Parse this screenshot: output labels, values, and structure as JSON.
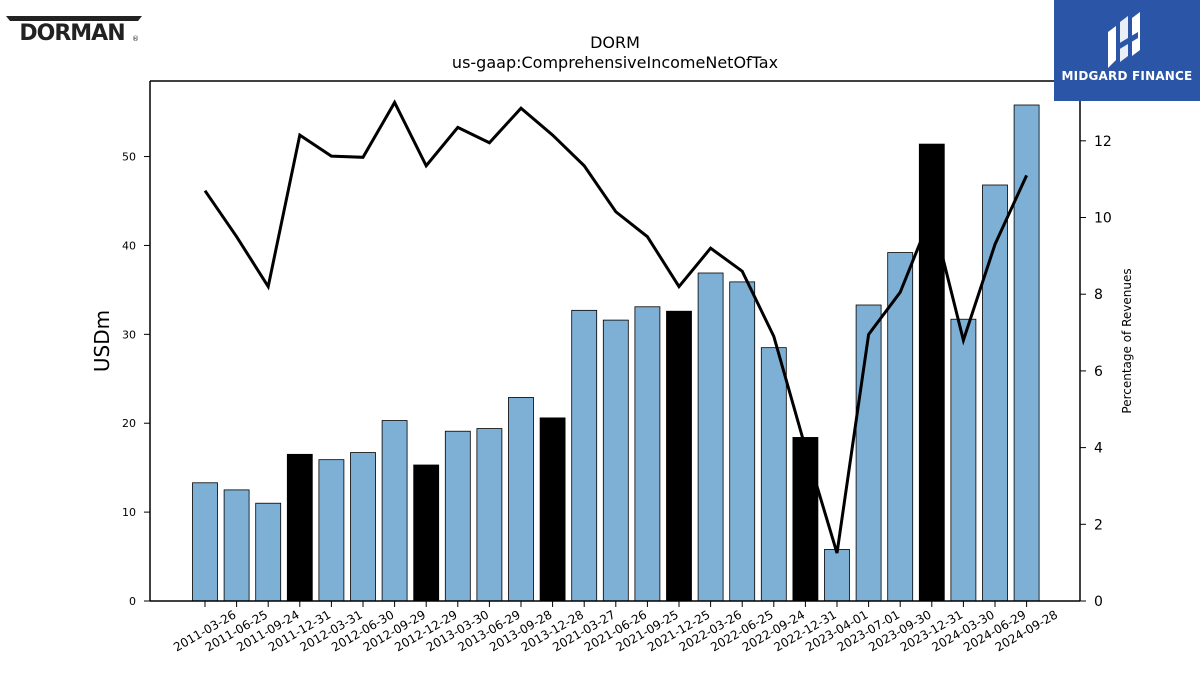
{
  "logos": {
    "left_text": "DORMAN",
    "right_text": "MIDGARD FINANCE"
  },
  "chart_data": {
    "type": "bar",
    "title": "DORM",
    "subtitle": "us-gaap:ComprehensiveIncomeNetOfTax",
    "ylabel": "USDm",
    "y2label": "Percentage of Revenues",
    "ylim": [
      0,
      58.5
    ],
    "y2lim": [
      0,
      13.56
    ],
    "yticks": [
      0,
      10,
      20,
      30,
      40,
      50
    ],
    "y2ticks": [
      0,
      2,
      4,
      6,
      8,
      10,
      12
    ],
    "categories": [
      "2011-03-26",
      "2011-06-25",
      "2011-09-24",
      "2011-12-31",
      "2012-03-31",
      "2012-06-30",
      "2012-09-29",
      "2012-12-29",
      "2013-03-30",
      "2013-06-29",
      "2013-09-28",
      "2013-12-28",
      "2021-03-27",
      "2021-06-26",
      "2021-09-25",
      "2021-12-25",
      "2022-03-26",
      "2022-06-25",
      "2022-09-24",
      "2022-12-31",
      "2023-04-01",
      "2023-07-01",
      "2023-09-30",
      "2023-12-31",
      "2024-03-30",
      "2024-06-29",
      "2024-09-28"
    ],
    "series": [
      {
        "type": "bar",
        "axis": "left",
        "values": [
          13.3,
          12.5,
          11.0,
          16.5,
          15.9,
          16.7,
          20.3,
          15.3,
          19.1,
          19.4,
          22.9,
          20.6,
          32.7,
          31.6,
          33.1,
          32.6,
          36.9,
          35.9,
          28.5,
          18.4,
          5.8,
          33.3,
          39.2,
          51.4,
          31.7,
          46.8,
          55.8
        ],
        "highlight": [
          false,
          false,
          false,
          true,
          false,
          false,
          false,
          true,
          false,
          false,
          false,
          true,
          false,
          false,
          false,
          true,
          false,
          false,
          false,
          true,
          false,
          false,
          false,
          true,
          false,
          false,
          false
        ]
      },
      {
        "type": "line",
        "axis": "right",
        "values": [
          10.7,
          9.5,
          8.2,
          12.15,
          11.6,
          11.57,
          13.0,
          11.35,
          12.35,
          11.95,
          12.85,
          12.15,
          11.35,
          10.15,
          9.5,
          8.2,
          9.2,
          8.6,
          6.9,
          4.0,
          1.25,
          6.95,
          8.05,
          10.1,
          6.8,
          9.3,
          11.1
        ]
      }
    ],
    "colors": {
      "bar": "#7eb0d5",
      "bar_highlight": "#000000",
      "line": "#000000",
      "axis": "#000000"
    }
  }
}
